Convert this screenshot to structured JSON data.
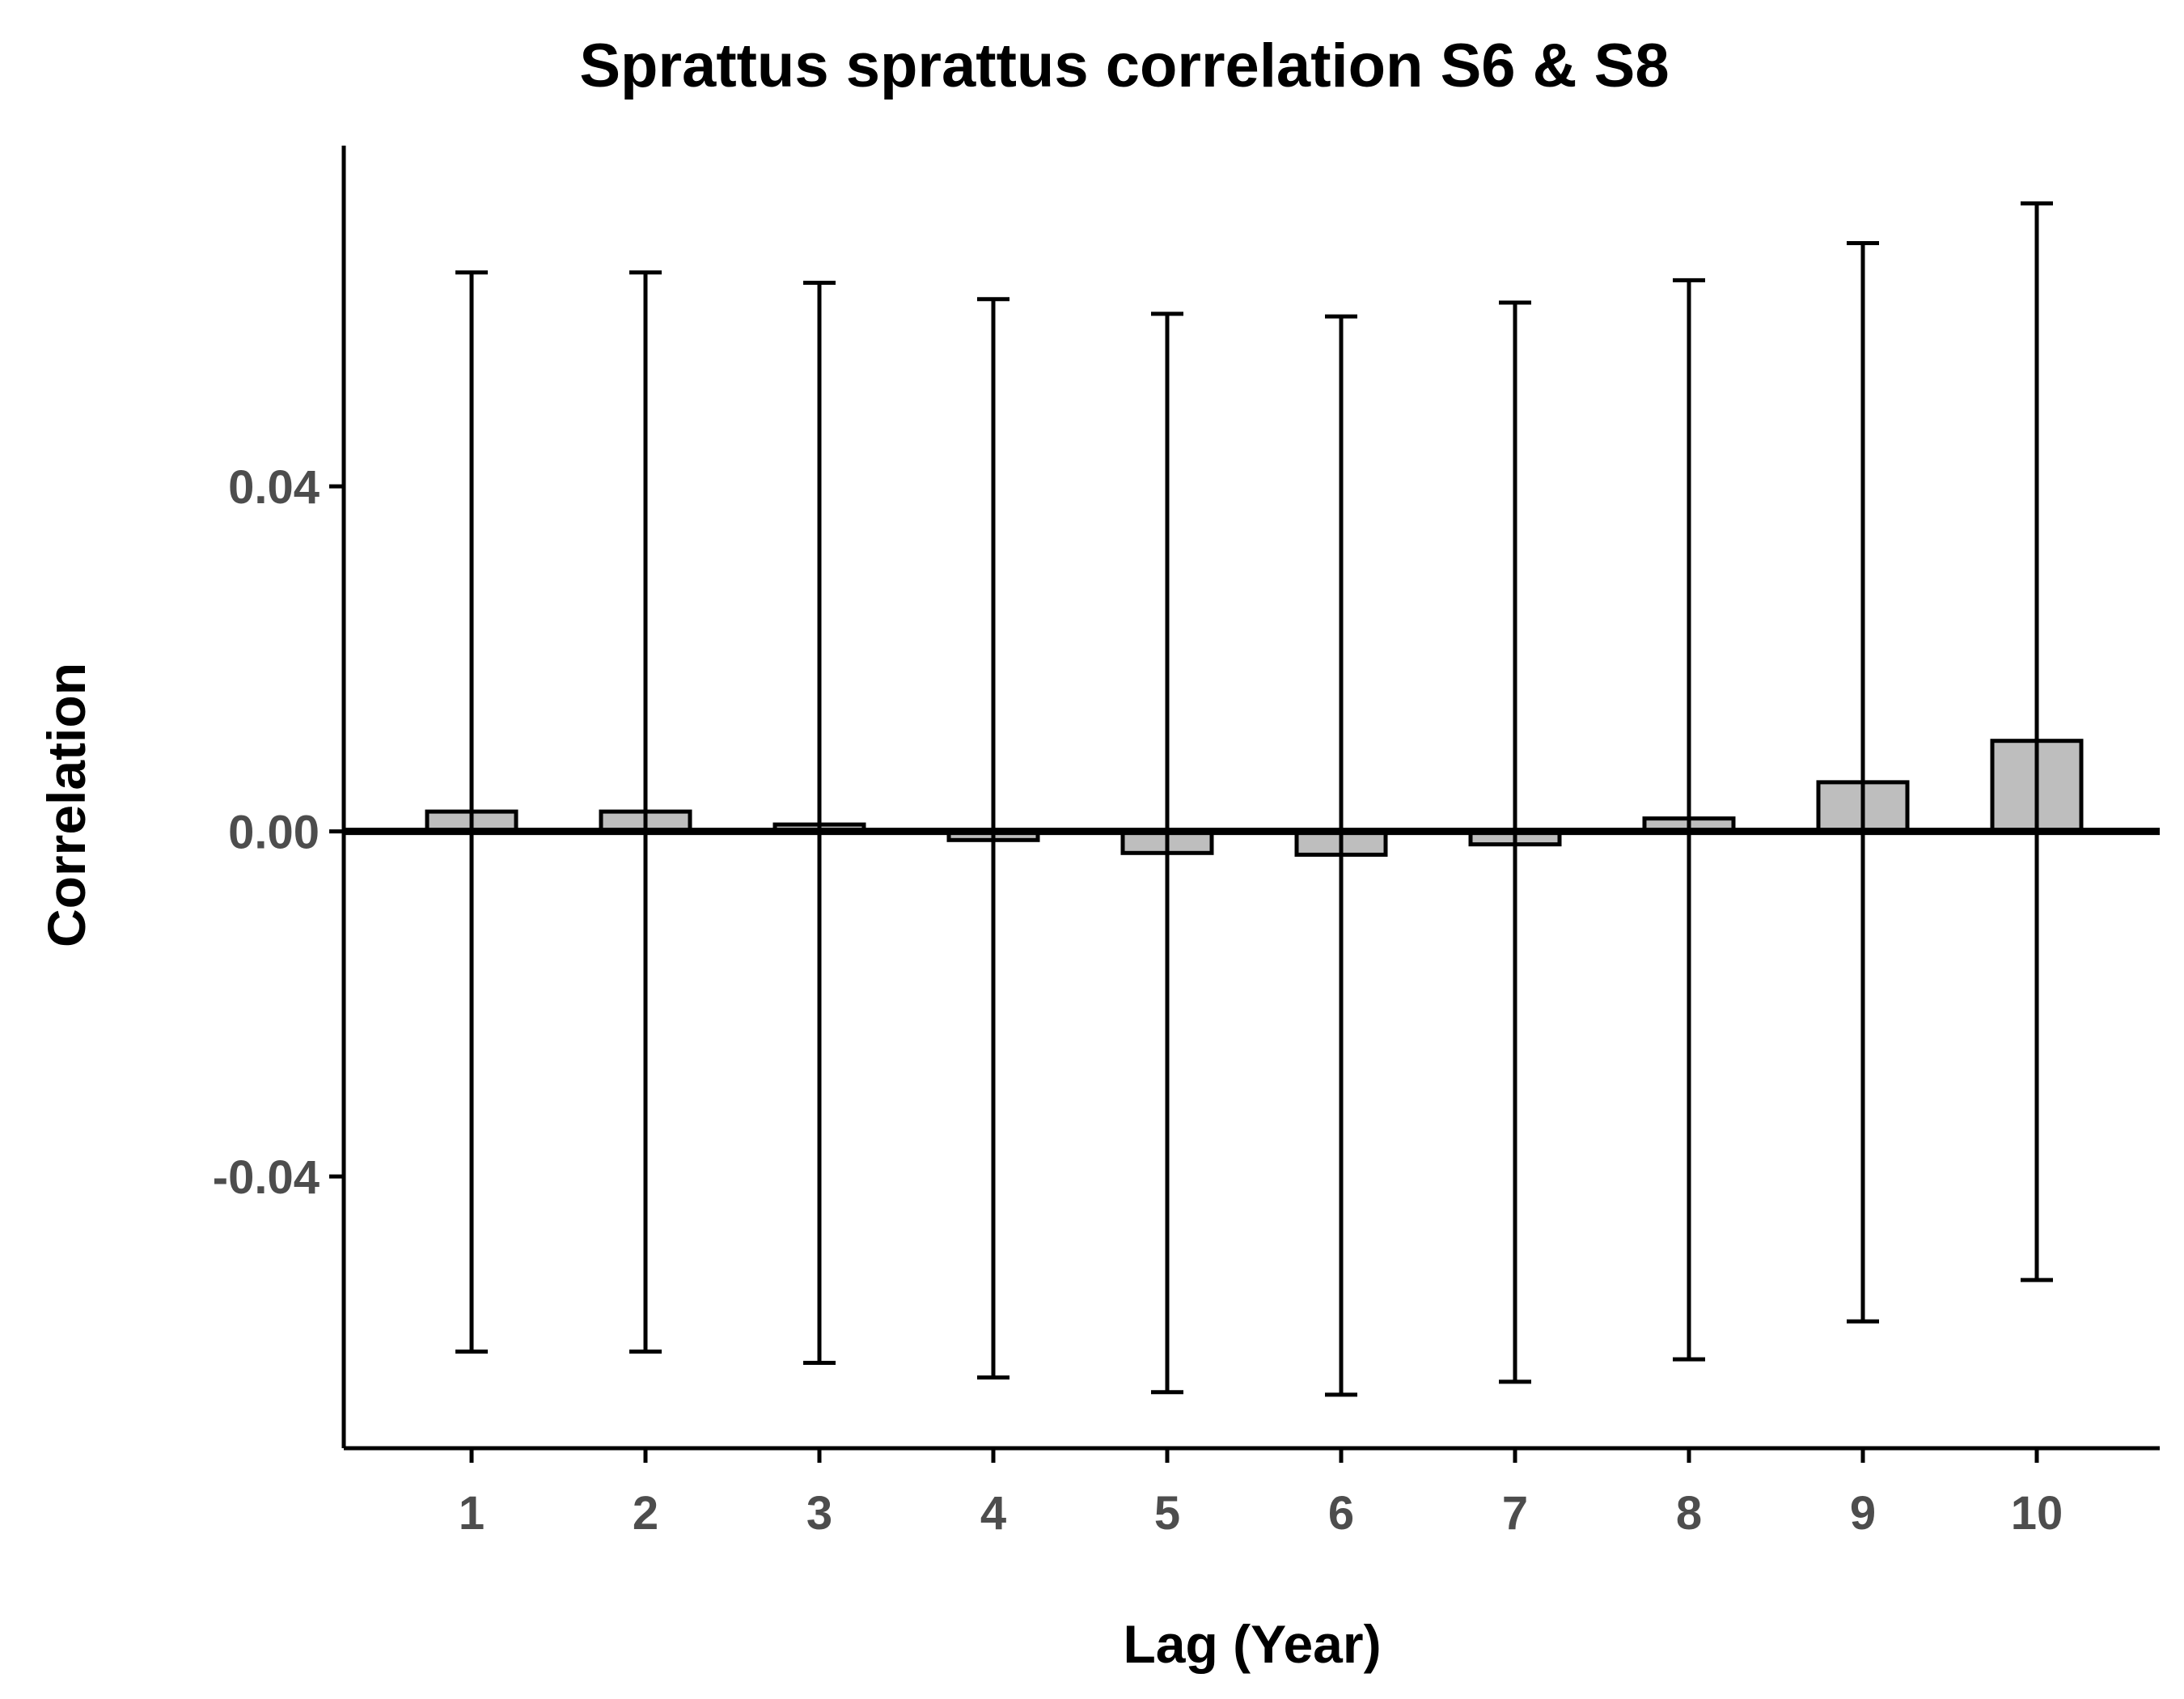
{
  "chart_data": {
    "type": "bar",
    "title": "Sprattus sprattus correlation S6 & S8",
    "xlabel": "Lag (Year)",
    "ylabel": "Correlation",
    "categories": [
      "1",
      "2",
      "3",
      "4",
      "5",
      "6",
      "7",
      "8",
      "9",
      "10"
    ],
    "values": [
      0.0023,
      0.0023,
      0.0008,
      -0.001,
      -0.0025,
      -0.0027,
      -0.0015,
      0.0015,
      0.0057,
      0.0105
    ],
    "error_upper": [
      0.0648,
      0.0648,
      0.0636,
      0.0617,
      0.06,
      0.0597,
      0.0613,
      0.0639,
      0.0682,
      0.0728
    ],
    "error_lower": [
      -0.0603,
      -0.0603,
      -0.0616,
      -0.0633,
      -0.065,
      -0.0653,
      -0.0638,
      -0.0612,
      -0.0568,
      -0.052
    ],
    "yticks": [
      -0.04,
      0.0,
      0.04
    ],
    "ytick_labels": [
      "-0.04",
      "0.00",
      "0.04"
    ],
    "ylim": [
      -0.0715,
      0.0795
    ],
    "grid": false,
    "legend": "none",
    "bar_fill": "#bebebe",
    "bar_stroke": "#000000",
    "zero_line": true
  }
}
